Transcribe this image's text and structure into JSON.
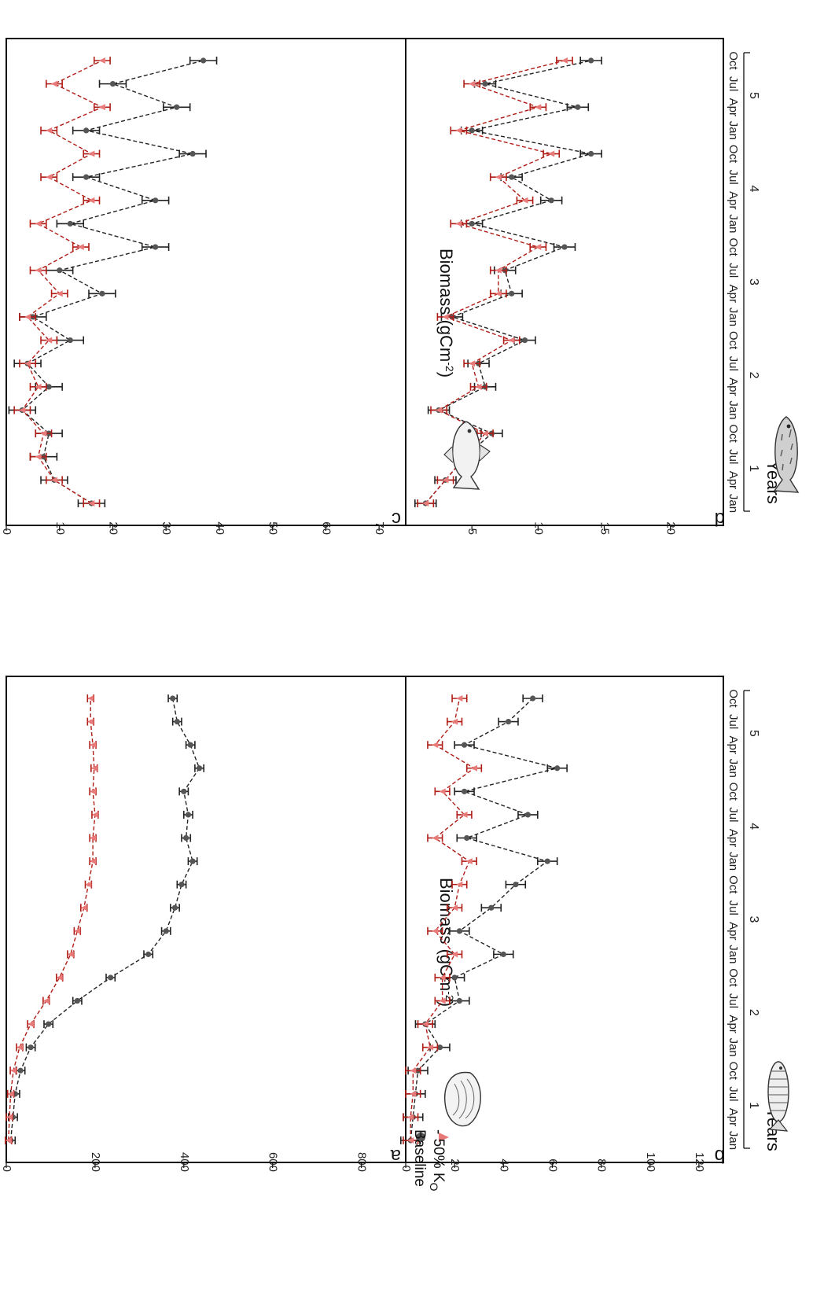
{
  "colors": {
    "baseline": "#222222",
    "reduced": "#b01c16",
    "reduced_marker": "#e87a7a"
  },
  "legend": {
    "baseline": "Baseline",
    "reduced_prefix": "- 50% K",
    "reduced_sub": "O"
  },
  "y_title": "Biomass (gCm",
  "y_title_sup": "-2",
  "y_title_close": ")",
  "x_title": "Years",
  "months": [
    "Jan",
    "Apr",
    "Jul",
    "Oct",
    "Jan",
    "Apr",
    "Jul",
    "Oct",
    "Jan",
    "Apr",
    "Jul",
    "Oct",
    "Jan",
    "Apr",
    "Jul",
    "Oct",
    "Jan",
    "Apr",
    "Jul",
    "Oct"
  ],
  "years": [
    "1",
    "2",
    "3",
    "4",
    "5"
  ],
  "chart_data": [
    {
      "panel": "a",
      "type": "line",
      "icon": "oyster-icon",
      "xlabel": "Years",
      "ylabel": "Biomass (gCm-2)",
      "ylim": [
        0,
        900
      ],
      "yticks": [
        0,
        200,
        400,
        600,
        800
      ],
      "x": [
        0,
        1,
        2,
        3,
        4,
        5,
        6,
        7,
        8,
        9,
        10,
        11,
        12,
        13,
        14,
        15,
        16,
        17,
        18,
        19
      ],
      "series": [
        {
          "name": "Baseline",
          "values": [
            10,
            15,
            20,
            32,
            55,
            95,
            160,
            235,
            320,
            360,
            380,
            395,
            420,
            405,
            410,
            400,
            435,
            415,
            385,
            375
          ],
          "err": 10
        },
        {
          "name": "- 50% KO",
          "values": [
            5,
            7,
            10,
            16,
            30,
            55,
            90,
            120,
            145,
            160,
            175,
            185,
            195,
            195,
            200,
            195,
            198,
            195,
            190,
            190
          ],
          "err": 7
        }
      ]
    },
    {
      "panel": "b",
      "type": "line",
      "icon": "small-fish-icon",
      "xlabel": "Years",
      "ylabel": "Biomass (gCm-2)",
      "ylim": [
        0,
        130
      ],
      "yticks": [
        0,
        20,
        40,
        60,
        80,
        100,
        120
      ],
      "x": [
        0,
        1,
        2,
        3,
        4,
        5,
        6,
        7,
        8,
        9,
        10,
        11,
        12,
        13,
        14,
        15,
        16,
        17,
        18,
        19
      ],
      "series": [
        {
          "name": "Baseline",
          "values": [
            2,
            3,
            4,
            5,
            14,
            8,
            22,
            20,
            40,
            22,
            35,
            45,
            58,
            25,
            50,
            24,
            62,
            24,
            42,
            52
          ],
          "err": 4
        },
        {
          "name": "- 50% KO",
          "values": [
            2,
            2,
            3,
            3,
            10,
            8,
            15,
            15,
            20,
            12,
            20,
            22,
            26,
            12,
            24,
            15,
            28,
            12,
            20,
            22
          ],
          "err": 3
        }
      ]
    },
    {
      "panel": "c",
      "type": "line",
      "icon": "cod-icon",
      "xlabel": "Years",
      "ylabel": "Biomass (gCm-2)",
      "ylim": [
        0,
        75
      ],
      "yticks": [
        0,
        10,
        20,
        30,
        40,
        50,
        60,
        70
      ],
      "x": [
        0,
        1,
        2,
        3,
        4,
        5,
        6,
        7,
        8,
        9,
        10,
        11,
        12,
        13,
        14,
        15,
        16,
        17,
        18,
        19
      ],
      "series": [
        {
          "name": "Baseline",
          "values": [
            16,
            9,
            7,
            8,
            3,
            8,
            4,
            12,
            5,
            18,
            10,
            28,
            12,
            28,
            15,
            35,
            15,
            32,
            20,
            37
          ],
          "err": 2.5
        },
        {
          "name": "- 50% KO",
          "values": [
            16,
            9,
            6,
            7,
            3,
            6,
            4,
            8,
            4,
            10,
            6,
            14,
            6,
            16,
            8,
            16,
            8,
            18,
            9,
            18
          ],
          "err": 1.5
        }
      ]
    },
    {
      "panel": "d",
      "type": "line",
      "icon": "trout-icon",
      "xlabel": "Years",
      "ylabel": "Biomass (gCm-2)",
      "ylim": [
        0,
        24
      ],
      "yticks": [
        5,
        10,
        15,
        20
      ],
      "x": [
        0,
        1,
        2,
        3,
        4,
        5,
        6,
        7,
        8,
        9,
        10,
        11,
        12,
        13,
        14,
        15,
        16,
        17,
        18,
        19
      ],
      "series": [
        {
          "name": "Baseline",
          "values": [
            1.5,
            3,
            4.5,
            6.5,
            2.5,
            6,
            5.5,
            9,
            3.5,
            8,
            7.5,
            12,
            5,
            11,
            8,
            14,
            5,
            13,
            6,
            14
          ],
          "err": 0.8
        },
        {
          "name": "- 50% KO",
          "values": [
            1.5,
            3,
            4.5,
            6,
            2.5,
            5.5,
            5,
            8,
            3,
            7,
            7,
            10,
            4,
            9,
            7,
            11,
            4,
            10,
            5,
            12
          ],
          "err": 0.6
        }
      ]
    }
  ]
}
